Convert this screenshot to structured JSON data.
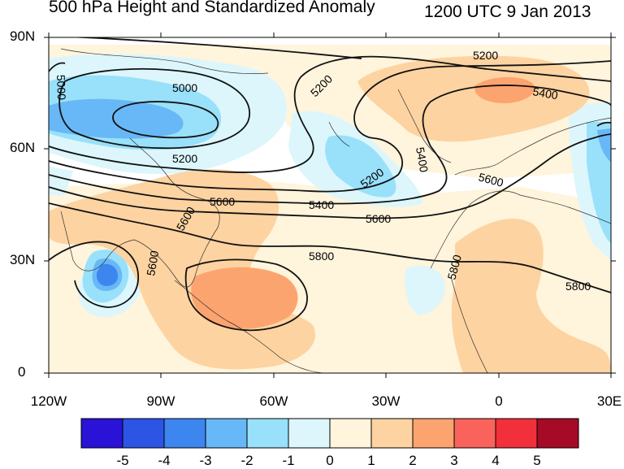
{
  "title": {
    "left": "500 hPa Height and Standardized Anomaly",
    "right": "1200 UTC 9 Jan 2013"
  },
  "lat_labels": [
    "90N",
    "60N",
    "30N",
    "0"
  ],
  "lon_labels": [
    "120W",
    "90W",
    "60W",
    "30W",
    "0",
    "30E"
  ],
  "contour_labels": [
    "5000",
    "5000",
    "5200",
    "5200",
    "5200",
    "5200",
    "5400",
    "5400",
    "5400",
    "5600",
    "5600",
    "5600",
    "5600",
    "5800",
    "5800",
    "5800",
    "5600"
  ],
  "colorbar": {
    "labels": [
      "-5",
      "-4",
      "-3",
      "-2",
      "-1",
      "0",
      "1",
      "2",
      "3",
      "4",
      "5"
    ],
    "colors": [
      "#2a12d6",
      "#2c55e6",
      "#3d86f0",
      "#68b8f7",
      "#99e0fa",
      "#dcf6fc",
      "#fff4dc",
      "#fdd3a1",
      "#fca46f",
      "#f9635b",
      "#f2303c",
      "#a50a26"
    ]
  },
  "anomaly_colors": {
    "cool_light": "#dcf6fc",
    "cool_mid": "#99e0fa",
    "cool_strong": "#68b8f7",
    "cool_deep": "#3d86f0",
    "warm_light": "#fff4dc",
    "warm_mid": "#fdd3a1",
    "warm_strong": "#fca46f"
  }
}
